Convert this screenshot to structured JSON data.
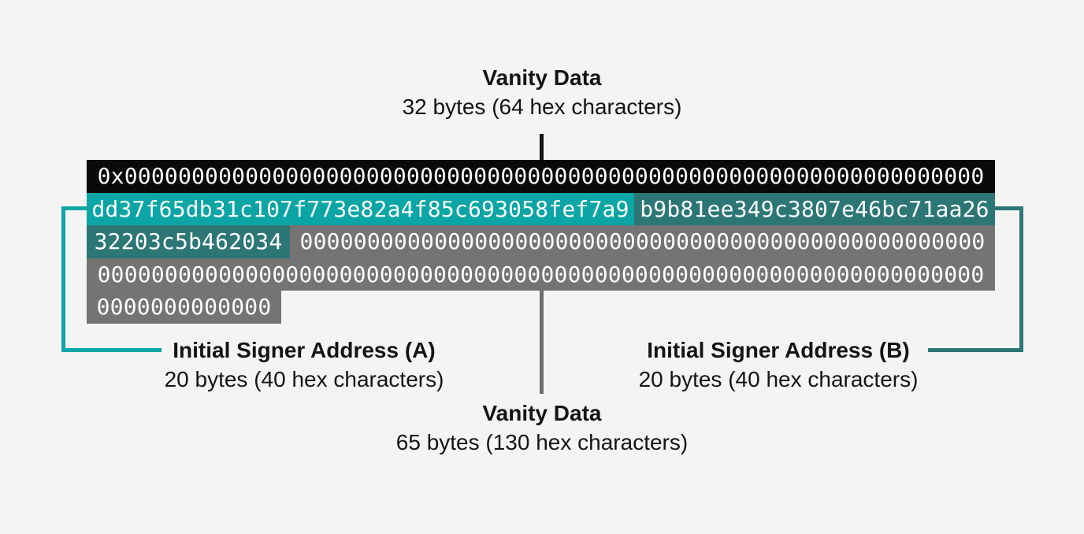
{
  "colors": {
    "page_background": "#f4f4f5",
    "prefix_row_bg": "#0a0a0a",
    "signer_a_teal": "#0ba5a5",
    "signer_b_teal": "#2d7676",
    "vanity_gray": "#747474",
    "connector_gray": "#6e6e6e",
    "connector_black": "#111111"
  },
  "top_label": {
    "title": "Vanity Data",
    "subtitle": "32 bytes (64 hex characters)"
  },
  "hex_rows": {
    "row1_prefix": "0x0000000000000000000000000000000000000000000000000000000000000000",
    "row2_signer_a": "dd37f65db31c107f773e82a4f85c693058fef7a9",
    "row2_signer_b": "b9b81ee349c3807e46bc71aa26",
    "row3_signer_b": "32203c5b462034",
    "row3_zeros": "000000000000000000000000000000000000000000000000000",
    "row4_zeros": "000000000000000000000000000000000000000000000000000000000000000000",
    "row5_zeros": "0000000000000"
  },
  "labels": {
    "signer_a_title": "Initial Signer Address (A)",
    "signer_a_subtitle": "20 bytes (40 hex characters)",
    "signer_b_title": "Initial Signer Address (B)",
    "signer_b_subtitle": "20 bytes (40 hex characters)",
    "vanity_title": "Vanity Data",
    "vanity_subtitle": "65 bytes (130 hex characters)"
  }
}
